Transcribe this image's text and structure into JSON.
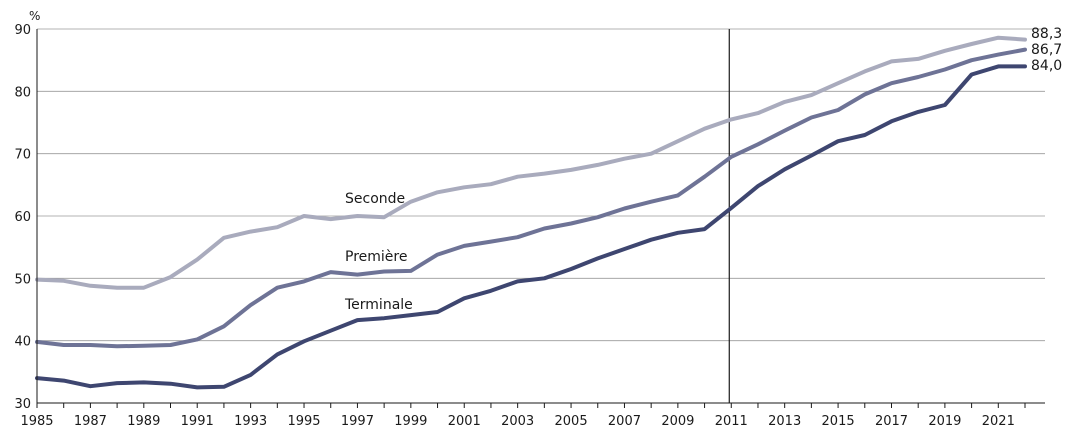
{
  "chart_data": {
    "type": "line",
    "unit": "%",
    "xlim": [
      1985,
      2022
    ],
    "ylim": [
      30,
      90
    ],
    "yticks": [
      30,
      40,
      50,
      60,
      70,
      80,
      90
    ],
    "xticks_labeled": [
      "1985",
      "1987",
      "1989",
      "1991",
      "1993",
      "1995",
      "1997",
      "1999",
      "2001",
      "2003",
      "2005",
      "2007",
      "2009",
      "2011",
      "2013",
      "2015",
      "2017",
      "2019",
      "2021"
    ],
    "vertical_marker_x": 2011,
    "grid": true,
    "x": [
      1985,
      1986,
      1987,
      1988,
      1989,
      1990,
      1991,
      1992,
      1993,
      1994,
      1995,
      1996,
      1997,
      1998,
      1999,
      2000,
      2001,
      2002,
      2003,
      2004,
      2005,
      2006,
      2007,
      2008,
      2009,
      2010,
      2011,
      2012,
      2013,
      2014,
      2015,
      2016,
      2017,
      2018,
      2019,
      2020,
      2021,
      2022
    ],
    "series": [
      {
        "name": "Seconde",
        "color": "#a9abbd",
        "end_label": "88,3",
        "values": [
          49.8,
          49.6,
          48.8,
          48.5,
          48.5,
          50.2,
          53.0,
          56.5,
          57.5,
          58.2,
          60.0,
          59.5,
          60.0,
          59.8,
          62.3,
          63.8,
          64.6,
          65.1,
          66.3,
          66.8,
          67.4,
          68.2,
          69.2,
          70.0,
          72.0,
          74.0,
          75.5,
          76.5,
          78.3,
          79.4,
          81.3,
          83.2,
          84.8,
          85.2,
          86.5,
          87.6,
          88.6,
          88.3
        ]
      },
      {
        "name": "Première",
        "color": "#6e7396",
        "end_label": "86,7",
        "values": [
          39.8,
          39.3,
          39.3,
          39.1,
          39.2,
          39.3,
          40.2,
          42.3,
          45.7,
          48.5,
          49.5,
          51.0,
          50.6,
          51.1,
          51.2,
          53.8,
          55.2,
          55.9,
          56.6,
          58.0,
          58.8,
          59.8,
          61.2,
          62.3,
          63.3,
          66.3,
          69.5,
          71.5,
          73.7,
          75.8,
          77.0,
          79.5,
          81.3,
          82.3,
          83.5,
          85.0,
          85.9,
          86.7
        ]
      },
      {
        "name": "Terminale",
        "color": "#3e4670",
        "end_label": "84,0",
        "values": [
          34.0,
          33.6,
          32.7,
          33.2,
          33.3,
          33.1,
          32.5,
          32.6,
          34.5,
          37.8,
          39.9,
          41.6,
          43.3,
          43.6,
          44.1,
          44.6,
          46.8,
          48.0,
          49.5,
          50.0,
          51.5,
          53.2,
          54.7,
          56.2,
          57.3,
          57.9,
          61.3,
          64.8,
          67.5,
          69.7,
          72.0,
          73.0,
          75.2,
          76.7,
          77.8,
          82.7,
          84.0,
          84.0
        ]
      }
    ]
  }
}
